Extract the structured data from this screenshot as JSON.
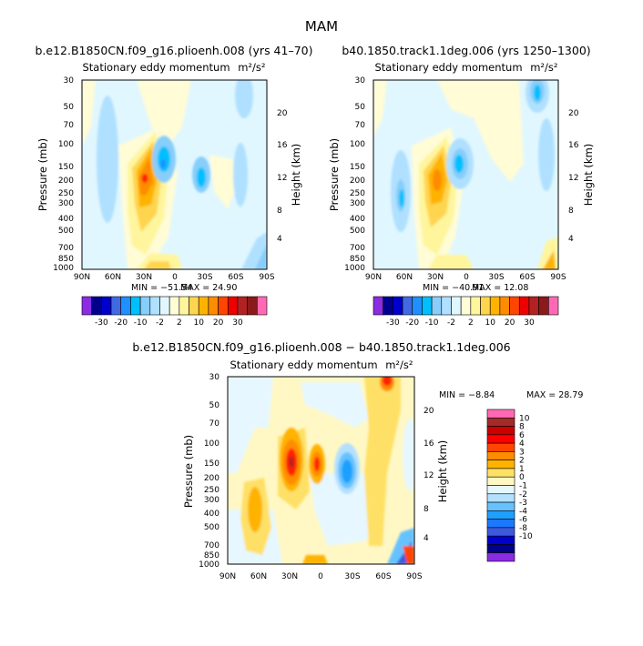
{
  "figure": {
    "season": "MAM",
    "colorbar_labels": [
      "-30",
      "-20",
      "-10",
      "-2",
      "2",
      "10",
      "20",
      "30"
    ],
    "colorbar_colors": [
      "#8b2be2",
      "#00008b",
      "#0000cd",
      "#4169e1",
      "#1e90ff",
      "#00bfff",
      "#87cefa",
      "#b0e0ff",
      "#e0f7ff",
      "#fffcd6",
      "#fff59d",
      "#ffd54f",
      "#ffb300",
      "#ff8c00",
      "#ff4500",
      "#ee0000",
      "#b22222",
      "#8b1a1a",
      "#ff69b4"
    ],
    "diff_colorbar_labels": [
      "10",
      "8",
      "6",
      "4",
      "3",
      "2",
      "1",
      "0",
      "-1",
      "-2",
      "-3",
      "-4",
      "-6",
      "-8",
      "-10"
    ],
    "diff_colorbar_colors": [
      "#ff69b4",
      "#a52a2a",
      "#cd0000",
      "#ff0000",
      "#ff4500",
      "#ff8c00",
      "#ffb300",
      "#ffe066",
      "#fff8c4",
      "#e6f7ff",
      "#b3e0ff",
      "#66c2ff",
      "#1ea0ff",
      "#1e78ff",
      "#3c5adc",
      "#0000cd",
      "#00008b",
      "#8b2be2"
    ]
  },
  "chart_data": [
    {
      "type": "heatmap",
      "title": "b.e12.B1850CN.f09_g16.plioenh.008 (yrs 41–70)",
      "variable_label": "Stationary eddy momentum",
      "units_label": "m²/s²",
      "xlabel": "",
      "ylabel": "Pressure (mb)",
      "ylabel_right": "Height (km)",
      "x_ticks": [
        "90N",
        "60N",
        "30N",
        "0",
        "30S",
        "60S",
        "90S"
      ],
      "y_ticks": [
        "30",
        "50",
        "70",
        "100",
        "150",
        "200",
        "250",
        "300",
        "400",
        "500",
        "700",
        "850",
        "1000"
      ],
      "y_right_ticks": [
        "20",
        "16",
        "12",
        "8",
        "4"
      ],
      "min_label": "MIN = −51.54",
      "max_label": "MAX =   24.90",
      "x_values": [
        90,
        60,
        30,
        0,
        -30,
        -60,
        -90
      ],
      "y_values": [
        30,
        50,
        70,
        100,
        150,
        200,
        250,
        300,
        400,
        500,
        700,
        850,
        1000
      ],
      "min": -51.54,
      "max": 24.9
    },
    {
      "type": "heatmap",
      "title": "b40.1850.track1.1deg.006 (yrs 1250–1300)",
      "variable_label": "Stationary eddy momentum",
      "units_label": "m²/s²",
      "xlabel": "",
      "ylabel": "Pressure (mb)",
      "ylabel_right": "Height (km)",
      "x_ticks": [
        "90N",
        "60N",
        "30N",
        "0",
        "30S",
        "60S",
        "90S"
      ],
      "y_ticks": [
        "30",
        "50",
        "70",
        "100",
        "150",
        "200",
        "250",
        "300",
        "400",
        "500",
        "700",
        "850",
        "1000"
      ],
      "y_right_ticks": [
        "20",
        "16",
        "12",
        "8",
        "4"
      ],
      "min_label": "MIN = −40.91",
      "max_label": "MAX =   12.08",
      "x_values": [
        90,
        60,
        30,
        0,
        -30,
        -60,
        -90
      ],
      "y_values": [
        30,
        50,
        70,
        100,
        150,
        200,
        250,
        300,
        400,
        500,
        700,
        850,
        1000
      ],
      "min": -40.91,
      "max": 12.08
    },
    {
      "type": "heatmap",
      "title": "b.e12.B1850CN.f09_g16.plioenh.008 − b40.1850.track1.1deg.006",
      "variable_label": "Stationary eddy momentum",
      "units_label": "m²/s²",
      "xlabel": "",
      "ylabel": "Pressure (mb)",
      "ylabel_right": "Height (km)",
      "x_ticks": [
        "90N",
        "60N",
        "30N",
        "0",
        "30S",
        "60S",
        "90S"
      ],
      "y_ticks": [
        "30",
        "50",
        "70",
        "100",
        "150",
        "200",
        "250",
        "300",
        "400",
        "500",
        "700",
        "850",
        "1000"
      ],
      "y_right_ticks": [
        "20",
        "16",
        "12",
        "8",
        "4"
      ],
      "min_label": "MIN =   −8.84",
      "max_label": "MAX =   28.79",
      "x_values": [
        90,
        60,
        30,
        0,
        -30,
        -60,
        -90
      ],
      "y_values": [
        30,
        50,
        70,
        100,
        150,
        200,
        250,
        300,
        400,
        500,
        700,
        850,
        1000
      ],
      "min": -8.84,
      "max": 28.79
    }
  ]
}
